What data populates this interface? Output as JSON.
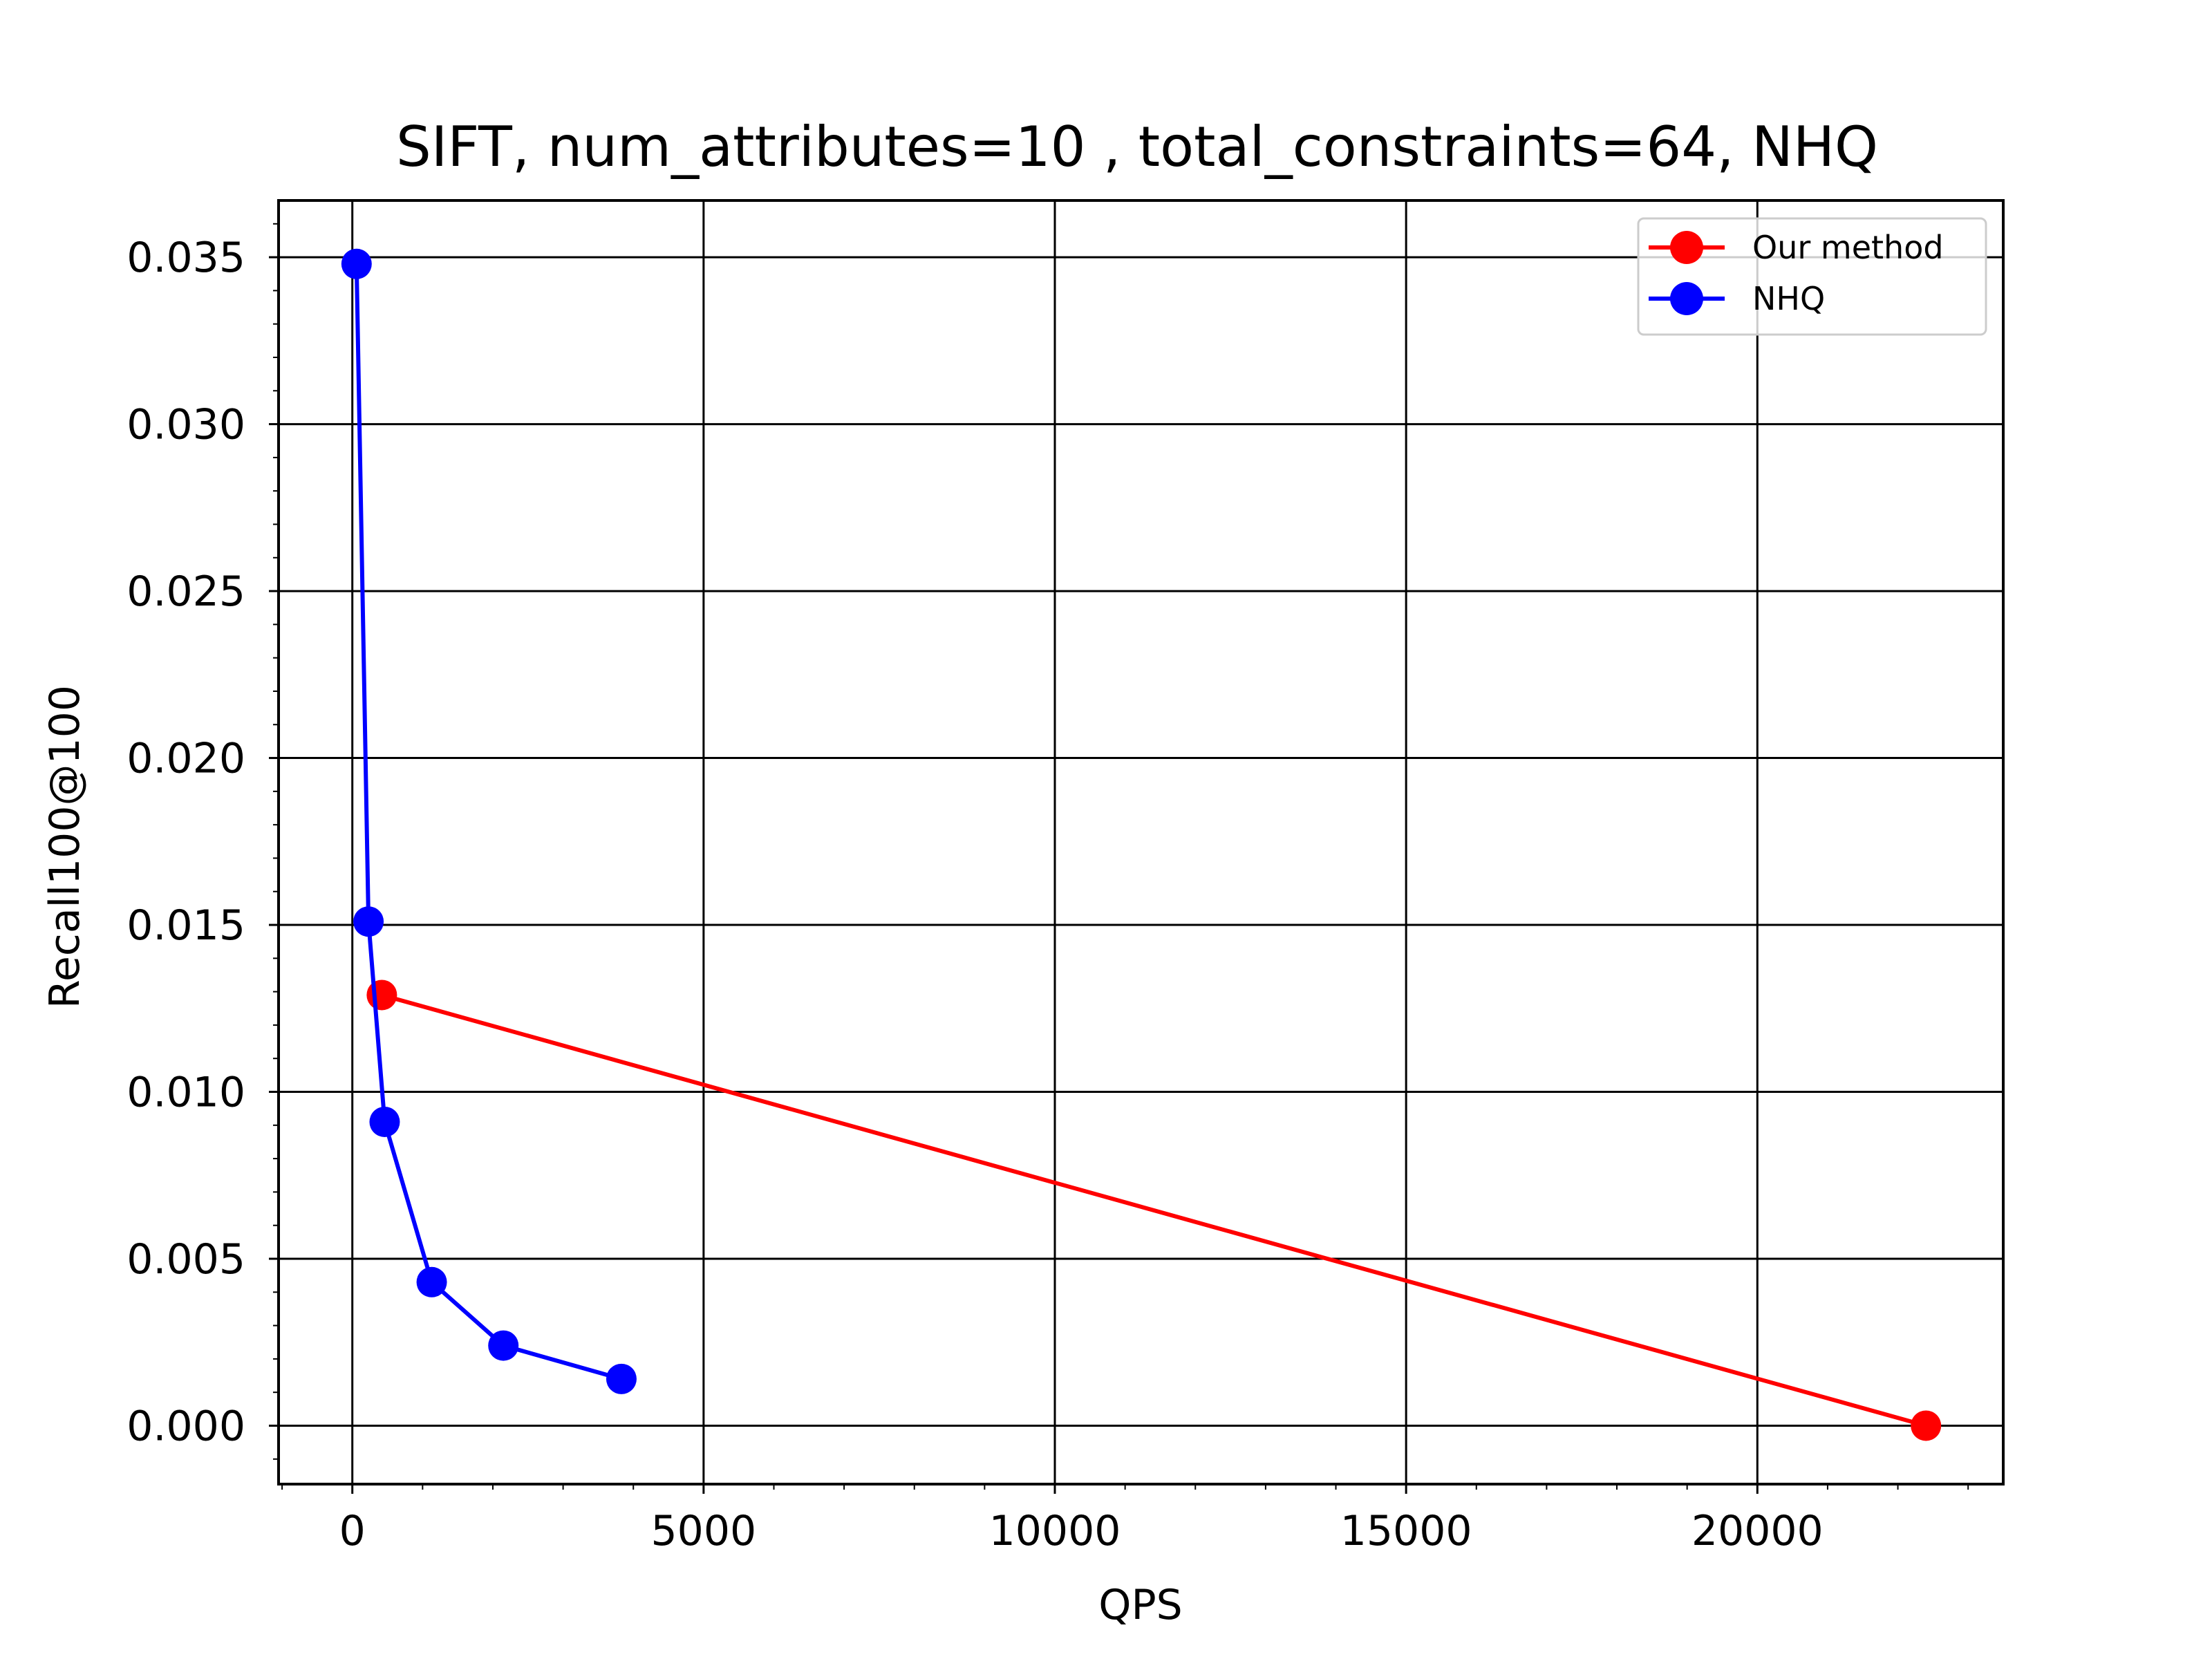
{
  "chart_data": {
    "type": "line",
    "title": "SIFT, num_attributes=10 , total_constraints=64, NHQ",
    "xlabel": "QPS",
    "ylabel": "Recall100@100",
    "xlim": [
      -1050,
      23500
    ],
    "ylim": [
      -0.00175,
      0.0367
    ],
    "xticks": [
      0,
      5000,
      10000,
      15000,
      20000
    ],
    "yticks": [
      0.0,
      0.005,
      0.01,
      0.015,
      0.02,
      0.025,
      0.03,
      0.035
    ],
    "xtick_labels": [
      "0",
      "5000",
      "10000",
      "15000",
      "20000"
    ],
    "ytick_labels": [
      "0.000",
      "0.005",
      "0.010",
      "0.015",
      "0.020",
      "0.025",
      "0.030",
      "0.035"
    ],
    "grid": true,
    "legend_position": "top-right",
    "series": [
      {
        "name": "Our method",
        "color": "#ff0000",
        "x": [
          420,
          22400
        ],
        "y": [
          0.0129,
          0.0
        ]
      },
      {
        "name": "NHQ",
        "color": "#0000ff",
        "x": [
          60,
          230,
          460,
          1130,
          2150,
          3830
        ],
        "y": [
          0.0348,
          0.0151,
          0.0091,
          0.0043,
          0.0024,
          0.0014
        ]
      }
    ]
  }
}
